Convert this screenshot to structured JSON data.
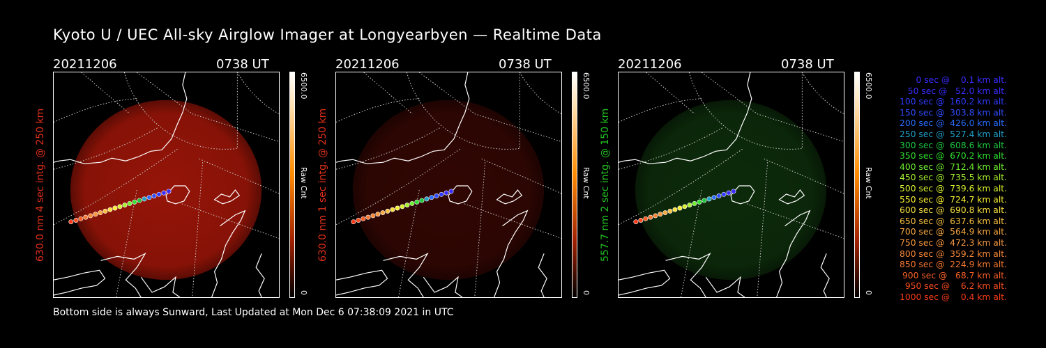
{
  "title": "Kyoto U / UEC All-sky Airglow Imager at Longyearbyen — Realtime Data",
  "panels": [
    {
      "date": "20211206",
      "time": "0738 UT",
      "side_label": "630.0 nm 4 sec intg. @ 250 km",
      "colorbar_max": "6500.0",
      "colorbar_unit": "Raw Cnt",
      "colorbar_min": "0",
      "glow_color": "#c01a0a",
      "glow_opacity": 0.78
    },
    {
      "date": "20211206",
      "time": "0738 UT",
      "side_label": "630.0 nm 1 sec intg. @ 250 km",
      "colorbar_max": "6500.0",
      "colorbar_unit": "Raw Cnt",
      "colorbar_min": "0",
      "glow_color": "#8a1208",
      "glow_opacity": 0.35
    },
    {
      "date": "20211206",
      "time": "0738 UT",
      "side_label": "557.7 nm 2 sec intg. @ 150 km",
      "colorbar_max": "6500.0",
      "colorbar_unit": "Raw Cnt",
      "colorbar_min": "0",
      "glow_color": "#1f6a1a",
      "glow_opacity": 0.4
    }
  ],
  "footer": "Bottom side is always Sunward, Last Updated at Mon Dec  6 07:38:09 2021 in UTC",
  "legend": [
    {
      "text": "   0 sec @    0.1 km alt.",
      "color": "#3a2cff"
    },
    {
      "text": "  50 sec @   52.0 km alt.",
      "color": "#3a2cff"
    },
    {
      "text": " 100 sec @  160.2 km alt.",
      "color": "#2f3cff"
    },
    {
      "text": " 150 sec @  303.8 km alt.",
      "color": "#2f4cff"
    },
    {
      "text": " 200 sec @  426.0 km alt.",
      "color": "#2a6cff"
    },
    {
      "text": " 250 sec @  527.4 km alt.",
      "color": "#20a0c8"
    },
    {
      "text": " 300 sec @  608.6 km alt.",
      "color": "#20c840"
    },
    {
      "text": " 350 sec @  670.2 km alt.",
      "color": "#30e030"
    },
    {
      "text": " 400 sec @  712.4 km alt.",
      "color": "#70f030"
    },
    {
      "text": " 450 sec @  735.5 km alt.",
      "color": "#a8f030"
    },
    {
      "text": " 500 sec @  739.6 km alt.",
      "color": "#d8f030"
    },
    {
      "text": " 550 sec @  724.7 km alt.",
      "color": "#f8f030"
    },
    {
      "text": " 600 sec @  690.8 km alt.",
      "color": "#f8e040"
    },
    {
      "text": " 650 sec @  637.6 km alt.",
      "color": "#f8c040"
    },
    {
      "text": " 700 sec @  564.9 km alt.",
      "color": "#f8a840"
    },
    {
      "text": " 750 sec @  472.3 km alt.",
      "color": "#f89840"
    },
    {
      "text": " 800 sec @  359.2 km alt.",
      "color": "#f88838"
    },
    {
      "text": " 850 sec @  224.9 km alt.",
      "color": "#f87830"
    },
    {
      "text": " 900 sec @   68.7 km alt.",
      "color": "#f86028"
    },
    {
      "text": " 950 sec @    6.2 km alt.",
      "color": "#f84c20"
    },
    {
      "text": "1000 sec @    0.4 km alt.",
      "color": "#f83a18"
    }
  ]
}
